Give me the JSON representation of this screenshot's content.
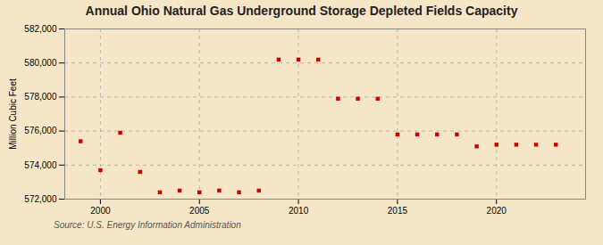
{
  "chart_data": {
    "type": "scatter",
    "title": "Annual Ohio Natural Gas Underground Storage Depleted Fields Capacity",
    "ylabel": "Million Cubic Feet",
    "source": "Source: U.S. Energy Information Administration",
    "color": "#cc0000",
    "marker": "square",
    "x": [
      1999,
      2000,
      2001,
      2002,
      2003,
      2004,
      2005,
      2006,
      2007,
      2008,
      2009,
      2010,
      2011,
      2012,
      2013,
      2014,
      2015,
      2016,
      2017,
      2018,
      2019,
      2020,
      2021,
      2022,
      2023
    ],
    "values": [
      575400,
      573700,
      575900,
      573600,
      572400,
      572500,
      572400,
      572500,
      572400,
      572500,
      580200,
      580200,
      580200,
      577900,
      577900,
      577900,
      575800,
      575800,
      575800,
      575800,
      575100,
      575200,
      575200,
      575200,
      575200
    ],
    "xlim": [
      1998.2,
      2024.5
    ],
    "xticks": [
      2000,
      2005,
      2010,
      2015,
      2020
    ],
    "ylim": [
      572000,
      582000
    ],
    "yticks": [
      {
        "value": 572000,
        "label": "572,000"
      },
      {
        "value": 574000,
        "label": "574,000"
      },
      {
        "value": 576000,
        "label": "576,000"
      },
      {
        "value": 578000,
        "label": "578,000"
      },
      {
        "value": 580000,
        "label": "580,000"
      },
      {
        "value": 582000,
        "label": "582,000"
      }
    ],
    "grid": true
  }
}
